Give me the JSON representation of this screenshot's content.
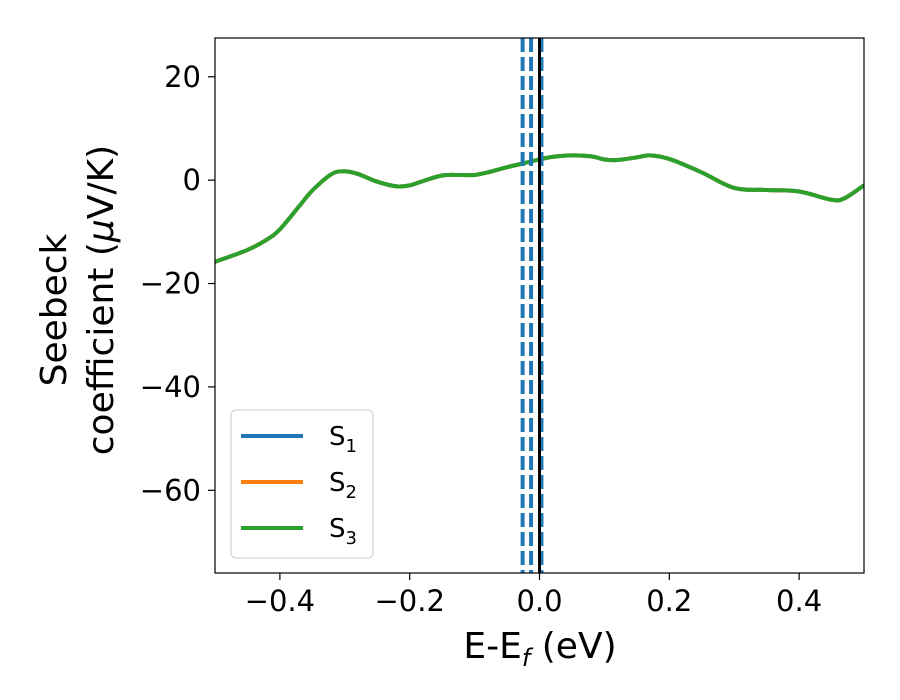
{
  "chart_data": {
    "type": "line",
    "xlabel": {
      "main": "E-E",
      "sub": "f",
      "tail": " (eV)"
    },
    "ylabel": {
      "line1": "Seebeck",
      "line2_prefix": "coefficient  (",
      "line2_mu": "μ",
      "line2_suffix": "V/K)"
    },
    "xlim": [
      -0.5,
      0.5
    ],
    "ylim": [
      -76,
      27.5
    ],
    "xticks": [
      -0.4,
      -0.2,
      0.0,
      0.2,
      0.4
    ],
    "xtick_labels": [
      "−0.4",
      "−0.2",
      "0.0",
      "0.2",
      "0.4"
    ],
    "yticks": [
      20,
      0,
      -20,
      -40,
      -60
    ],
    "ytick_labels": [
      "20",
      "0",
      "−20",
      "−40",
      "−60"
    ],
    "grid": false,
    "legend_position": "lower-left",
    "series": [
      {
        "name": "S",
        "sub": "1",
        "color": "#1f77b4",
        "x": [
          -0.5,
          -0.45,
          -0.42,
          -0.4,
          -0.37,
          -0.35,
          -0.32,
          -0.3,
          -0.28,
          -0.25,
          -0.22,
          -0.2,
          -0.18,
          -0.15,
          -0.12,
          -0.1,
          -0.08,
          -0.05,
          -0.02,
          0.0,
          0.02,
          0.05,
          0.08,
          0.1,
          0.12,
          0.15,
          0.17,
          0.2,
          0.25,
          0.3,
          0.35,
          0.4,
          0.45,
          0.47,
          0.5
        ],
        "y": [
          -15.8,
          -13.5,
          -11.5,
          -9.5,
          -5,
          -2,
          1.2,
          1.7,
          1.2,
          -0.3,
          -1.2,
          -1.0,
          -0.2,
          0.9,
          1.0,
          1.0,
          1.5,
          2.5,
          3.4,
          4.0,
          4.5,
          4.8,
          4.6,
          4.0,
          3.9,
          4.4,
          4.8,
          4.1,
          1.5,
          -1.5,
          -1.9,
          -2.2,
          -3.8,
          -3.5,
          -1.0
        ]
      },
      {
        "name": "S",
        "sub": "2",
        "color": "#ff7f0e",
        "x": [
          -0.5,
          -0.45,
          -0.42,
          -0.4,
          -0.37,
          -0.35,
          -0.32,
          -0.3,
          -0.28,
          -0.25,
          -0.22,
          -0.2,
          -0.18,
          -0.15,
          -0.12,
          -0.1,
          -0.08,
          -0.05,
          -0.02,
          0.0,
          0.02,
          0.05,
          0.08,
          0.1,
          0.12,
          0.15,
          0.17,
          0.2,
          0.25,
          0.3,
          0.35,
          0.4,
          0.45,
          0.47,
          0.5
        ],
        "y": [
          -15.8,
          -13.5,
          -11.5,
          -9.5,
          -5,
          -2,
          1.2,
          1.7,
          1.2,
          -0.3,
          -1.2,
          -1.0,
          -0.2,
          0.9,
          1.0,
          1.0,
          1.5,
          2.5,
          3.4,
          4.0,
          4.5,
          4.8,
          4.6,
          4.0,
          3.9,
          4.4,
          4.8,
          4.1,
          1.5,
          -1.5,
          -1.9,
          -2.2,
          -3.8,
          -3.5,
          -1.0
        ]
      },
      {
        "name": "S",
        "sub": "3",
        "color": "#2ca02c",
        "x": [
          -0.5,
          -0.45,
          -0.42,
          -0.4,
          -0.37,
          -0.35,
          -0.32,
          -0.3,
          -0.28,
          -0.25,
          -0.22,
          -0.2,
          -0.18,
          -0.15,
          -0.12,
          -0.1,
          -0.08,
          -0.05,
          -0.02,
          0.0,
          0.02,
          0.05,
          0.08,
          0.1,
          0.12,
          0.15,
          0.17,
          0.2,
          0.25,
          0.3,
          0.35,
          0.4,
          0.45,
          0.47,
          0.5
        ],
        "y": [
          -15.8,
          -13.5,
          -11.5,
          -9.5,
          -5,
          -2,
          1.2,
          1.7,
          1.2,
          -0.3,
          -1.2,
          -1.0,
          -0.2,
          0.9,
          1.0,
          1.0,
          1.5,
          2.5,
          3.4,
          4.0,
          4.5,
          4.8,
          4.6,
          4.0,
          3.9,
          4.4,
          4.8,
          4.1,
          1.5,
          -1.5,
          -1.9,
          -2.2,
          -3.8,
          -3.5,
          -1.0
        ]
      }
    ],
    "vertical_lines": [
      {
        "x": -0.026,
        "color": "#1f77b4",
        "style": "dashed"
      },
      {
        "x": -0.013,
        "color": "#1f77b4",
        "style": "dashed"
      },
      {
        "x": 0.003,
        "color": "#1f77b4",
        "style": "dashed"
      },
      {
        "x": 0.0,
        "color": "#000000",
        "style": "solid"
      }
    ]
  }
}
